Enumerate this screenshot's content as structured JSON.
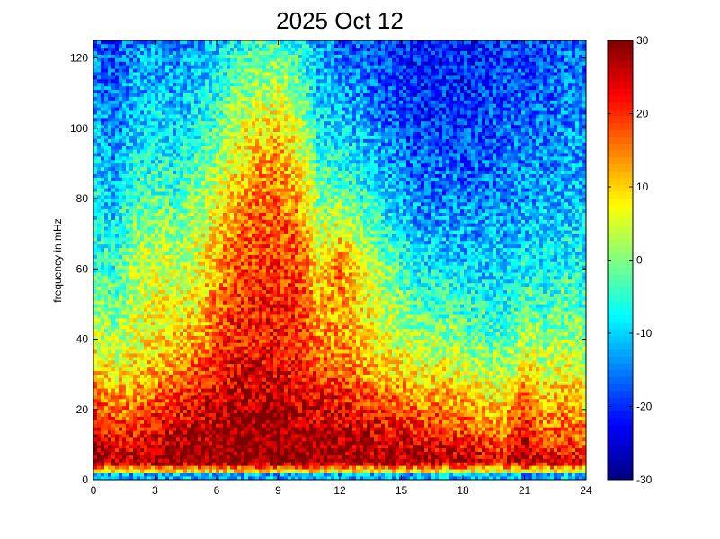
{
  "chart_data": {
    "type": "heatmap",
    "title": "2025 Oct 12",
    "xlabel": "",
    "ylabel": "frequency in mHz",
    "xlim": [
      0,
      24
    ],
    "ylim": [
      0,
      125
    ],
    "xticks": [
      0,
      3,
      6,
      9,
      12,
      15,
      18,
      21,
      24
    ],
    "yticks": [
      0,
      20,
      40,
      60,
      80,
      100,
      120
    ],
    "colorbar": {
      "colormap": "jet",
      "clim": [
        -30,
        30
      ],
      "ticks": [
        -30,
        -20,
        -10,
        0,
        10,
        20,
        30
      ]
    },
    "grid": false,
    "description_of_values": {
      "x_hours_sampled": [
        0,
        1,
        2,
        3,
        4,
        5,
        6,
        7,
        8,
        9,
        10,
        11,
        12,
        13,
        14,
        15,
        16,
        17,
        18,
        19,
        20,
        21,
        22,
        23,
        24
      ],
      "y_mhz_sampled": [
        0,
        5,
        10,
        20,
        30,
        40,
        50,
        60,
        70,
        80,
        90,
        100,
        110,
        120,
        125
      ]
    },
    "approx_power_grid": [
      [
        -12,
        28,
        27,
        20,
        12,
        5,
        0,
        -3,
        -6,
        -8,
        -10,
        -12,
        -14,
        -15,
        -16
      ],
      [
        -12,
        27,
        24,
        16,
        8,
        2,
        -2,
        -5,
        -8,
        -11,
        -13,
        -15,
        -17,
        -18,
        -18
      ],
      [
        -12,
        27,
        24,
        16,
        10,
        6,
        4,
        2,
        0,
        -4,
        -7,
        -10,
        -12,
        -13,
        -14
      ],
      [
        -12,
        29,
        26,
        20,
        12,
        8,
        6,
        4,
        2,
        -2,
        -6,
        -9,
        -11,
        -12,
        -13
      ],
      [
        -12,
        29,
        27,
        21,
        14,
        10,
        6,
        4,
        0,
        -4,
        -7,
        -10,
        -12,
        -14,
        -15
      ],
      [
        -12,
        30,
        28,
        24,
        18,
        12,
        8,
        6,
        4,
        0,
        -3,
        -7,
        -10,
        -12,
        -14
      ],
      [
        -12,
        30,
        29,
        26,
        22,
        18,
        16,
        12,
        10,
        6,
        2,
        -2,
        -6,
        -9,
        -11
      ],
      [
        -12,
        30,
        30,
        28,
        24,
        22,
        20,
        18,
        16,
        12,
        8,
        4,
        0,
        -4,
        -8
      ],
      [
        -12,
        30,
        30,
        28,
        24,
        22,
        22,
        20,
        18,
        16,
        12,
        8,
        2,
        -2,
        -6
      ],
      [
        -12,
        30,
        30,
        28,
        24,
        22,
        22,
        20,
        18,
        16,
        14,
        10,
        4,
        0,
        -4
      ],
      [
        -12,
        30,
        29,
        26,
        22,
        20,
        20,
        18,
        16,
        12,
        8,
        4,
        0,
        -4,
        -8
      ],
      [
        -12,
        29,
        28,
        24,
        18,
        14,
        12,
        8,
        4,
        0,
        -4,
        -8,
        -11,
        -13,
        -14
      ],
      [
        -12,
        29,
        28,
        24,
        18,
        14,
        14,
        16,
        8,
        0,
        -6,
        -10,
        -13,
        -15,
        -16
      ],
      [
        -12,
        28,
        27,
        22,
        14,
        10,
        10,
        8,
        2,
        -4,
        -8,
        -12,
        -14,
        -16,
        -17
      ],
      [
        -12,
        28,
        26,
        20,
        12,
        6,
        4,
        2,
        -4,
        -8,
        -12,
        -15,
        -17,
        -18,
        -19
      ],
      [
        -12,
        28,
        26,
        18,
        10,
        4,
        0,
        -4,
        -8,
        -12,
        -15,
        -17,
        -19,
        -20,
        -20
      ],
      [
        -12,
        28,
        24,
        16,
        8,
        2,
        -4,
        -8,
        -12,
        -15,
        -17,
        -19,
        -20,
        -21,
        -21
      ],
      [
        -12,
        27,
        24,
        16,
        8,
        2,
        -4,
        -8,
        -12,
        -15,
        -17,
        -19,
        -20,
        -21,
        -21
      ],
      [
        -12,
        27,
        22,
        14,
        6,
        0,
        -5,
        -9,
        -12,
        -15,
        -17,
        -19,
        -20,
        -21,
        -21
      ],
      [
        -12,
        26,
        20,
        12,
        4,
        -2,
        -6,
        -10,
        -13,
        -15,
        -17,
        -18,
        -19,
        -20,
        -20
      ],
      [
        -12,
        24,
        18,
        10,
        2,
        -3,
        -6,
        -10,
        -12,
        -14,
        -16,
        -17,
        -18,
        -19,
        -19
      ],
      [
        -12,
        28,
        26,
        20,
        10,
        2,
        -3,
        -7,
        -10,
        -13,
        -15,
        -16,
        -17,
        -18,
        -18
      ],
      [
        -12,
        24,
        18,
        12,
        6,
        0,
        -4,
        -8,
        -10,
        -12,
        -14,
        -16,
        -17,
        -18,
        -18
      ],
      [
        -12,
        26,
        20,
        14,
        8,
        2,
        -2,
        -6,
        -9,
        -11,
        -13,
        -14,
        -15,
        -16,
        -16
      ],
      [
        -12,
        24,
        18,
        12,
        6,
        0,
        -4,
        -7,
        -9,
        -11,
        -13,
        -14,
        -15,
        -16,
        -16
      ]
    ]
  }
}
